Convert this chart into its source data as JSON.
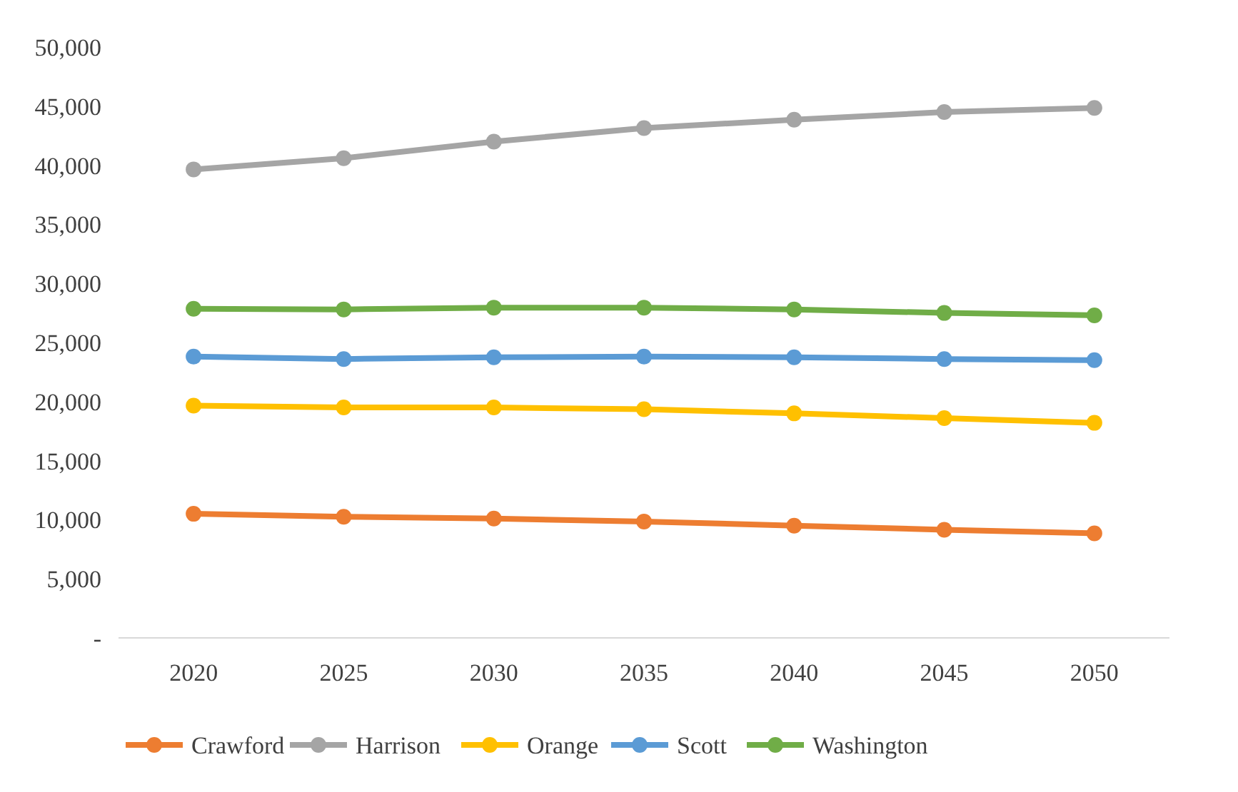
{
  "chart_data": {
    "type": "line",
    "categories": [
      "2020",
      "2025",
      "2030",
      "2035",
      "2040",
      "2045",
      "2050"
    ],
    "series": [
      {
        "name": "Crawford",
        "color": "#ed7d31",
        "values": [
          10500,
          10250,
          10100,
          9850,
          9500,
          9150,
          8850
        ]
      },
      {
        "name": "Harrison",
        "color": "#a5a5a5",
        "values": [
          39650,
          40600,
          42000,
          43150,
          43850,
          44500,
          44850
        ]
      },
      {
        "name": "Orange",
        "color": "#ffc000",
        "values": [
          19650,
          19500,
          19500,
          19350,
          19000,
          18600,
          18200
        ]
      },
      {
        "name": "Scott",
        "color": "#5b9bd5",
        "values": [
          23800,
          23600,
          23750,
          23800,
          23750,
          23600,
          23500
        ]
      },
      {
        "name": "Washington",
        "color": "#70ad47",
        "values": [
          27850,
          27800,
          27950,
          27950,
          27800,
          27500,
          27300
        ]
      }
    ],
    "ylim": [
      0,
      50000
    ],
    "yticks": [
      {
        "value": 0,
        "label": "-"
      },
      {
        "value": 5000,
        "label": "5,000"
      },
      {
        "value": 10000,
        "label": "10,000"
      },
      {
        "value": 15000,
        "label": "15,000"
      },
      {
        "value": 20000,
        "label": "20,000"
      },
      {
        "value": 25000,
        "label": "25,000"
      },
      {
        "value": 30000,
        "label": "30,000"
      },
      {
        "value": 35000,
        "label": "35,000"
      },
      {
        "value": 40000,
        "label": "40,000"
      },
      {
        "value": 45000,
        "label": "45,000"
      },
      {
        "value": 50000,
        "label": "50,000"
      }
    ],
    "grid": false,
    "legend": "bottom",
    "marker": "circle",
    "line_style": "solid"
  }
}
